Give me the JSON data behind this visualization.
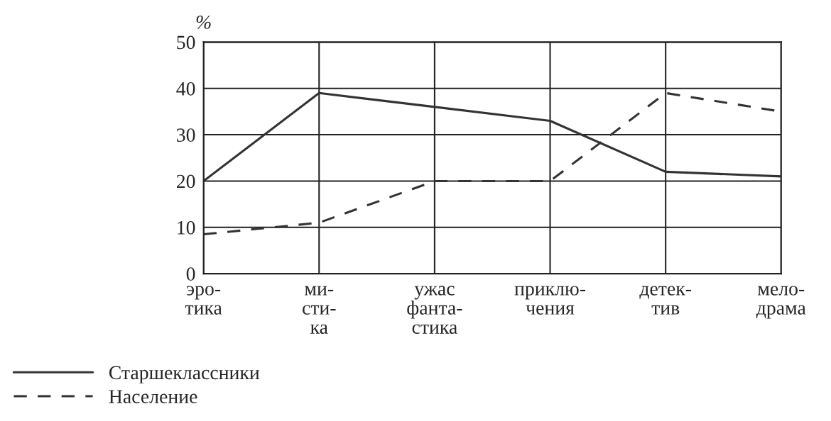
{
  "chart_data": {
    "type": "line",
    "ylabel": "%",
    "categories": [
      "эро-\nтика",
      "ми-\nсти-\nка",
      "ужас\nфанта-\nстика",
      "приклю-\nчения",
      "детек-\nтив",
      "мело-\nдрама"
    ],
    "series": [
      {
        "name": "Старшеклассники",
        "color": "#333333",
        "line_style": "solid",
        "values": [
          20,
          39,
          36,
          33,
          22,
          21
        ]
      },
      {
        "name": "Население",
        "color": "#333333",
        "line_style": "dashed",
        "values": [
          8.5,
          11,
          20,
          20,
          39,
          35
        ]
      }
    ],
    "ylim": [
      0,
      50
    ],
    "yticks": [
      0,
      10,
      20,
      30,
      40,
      50
    ],
    "grid": true,
    "legend": "bottom left",
    "marker": "none"
  }
}
